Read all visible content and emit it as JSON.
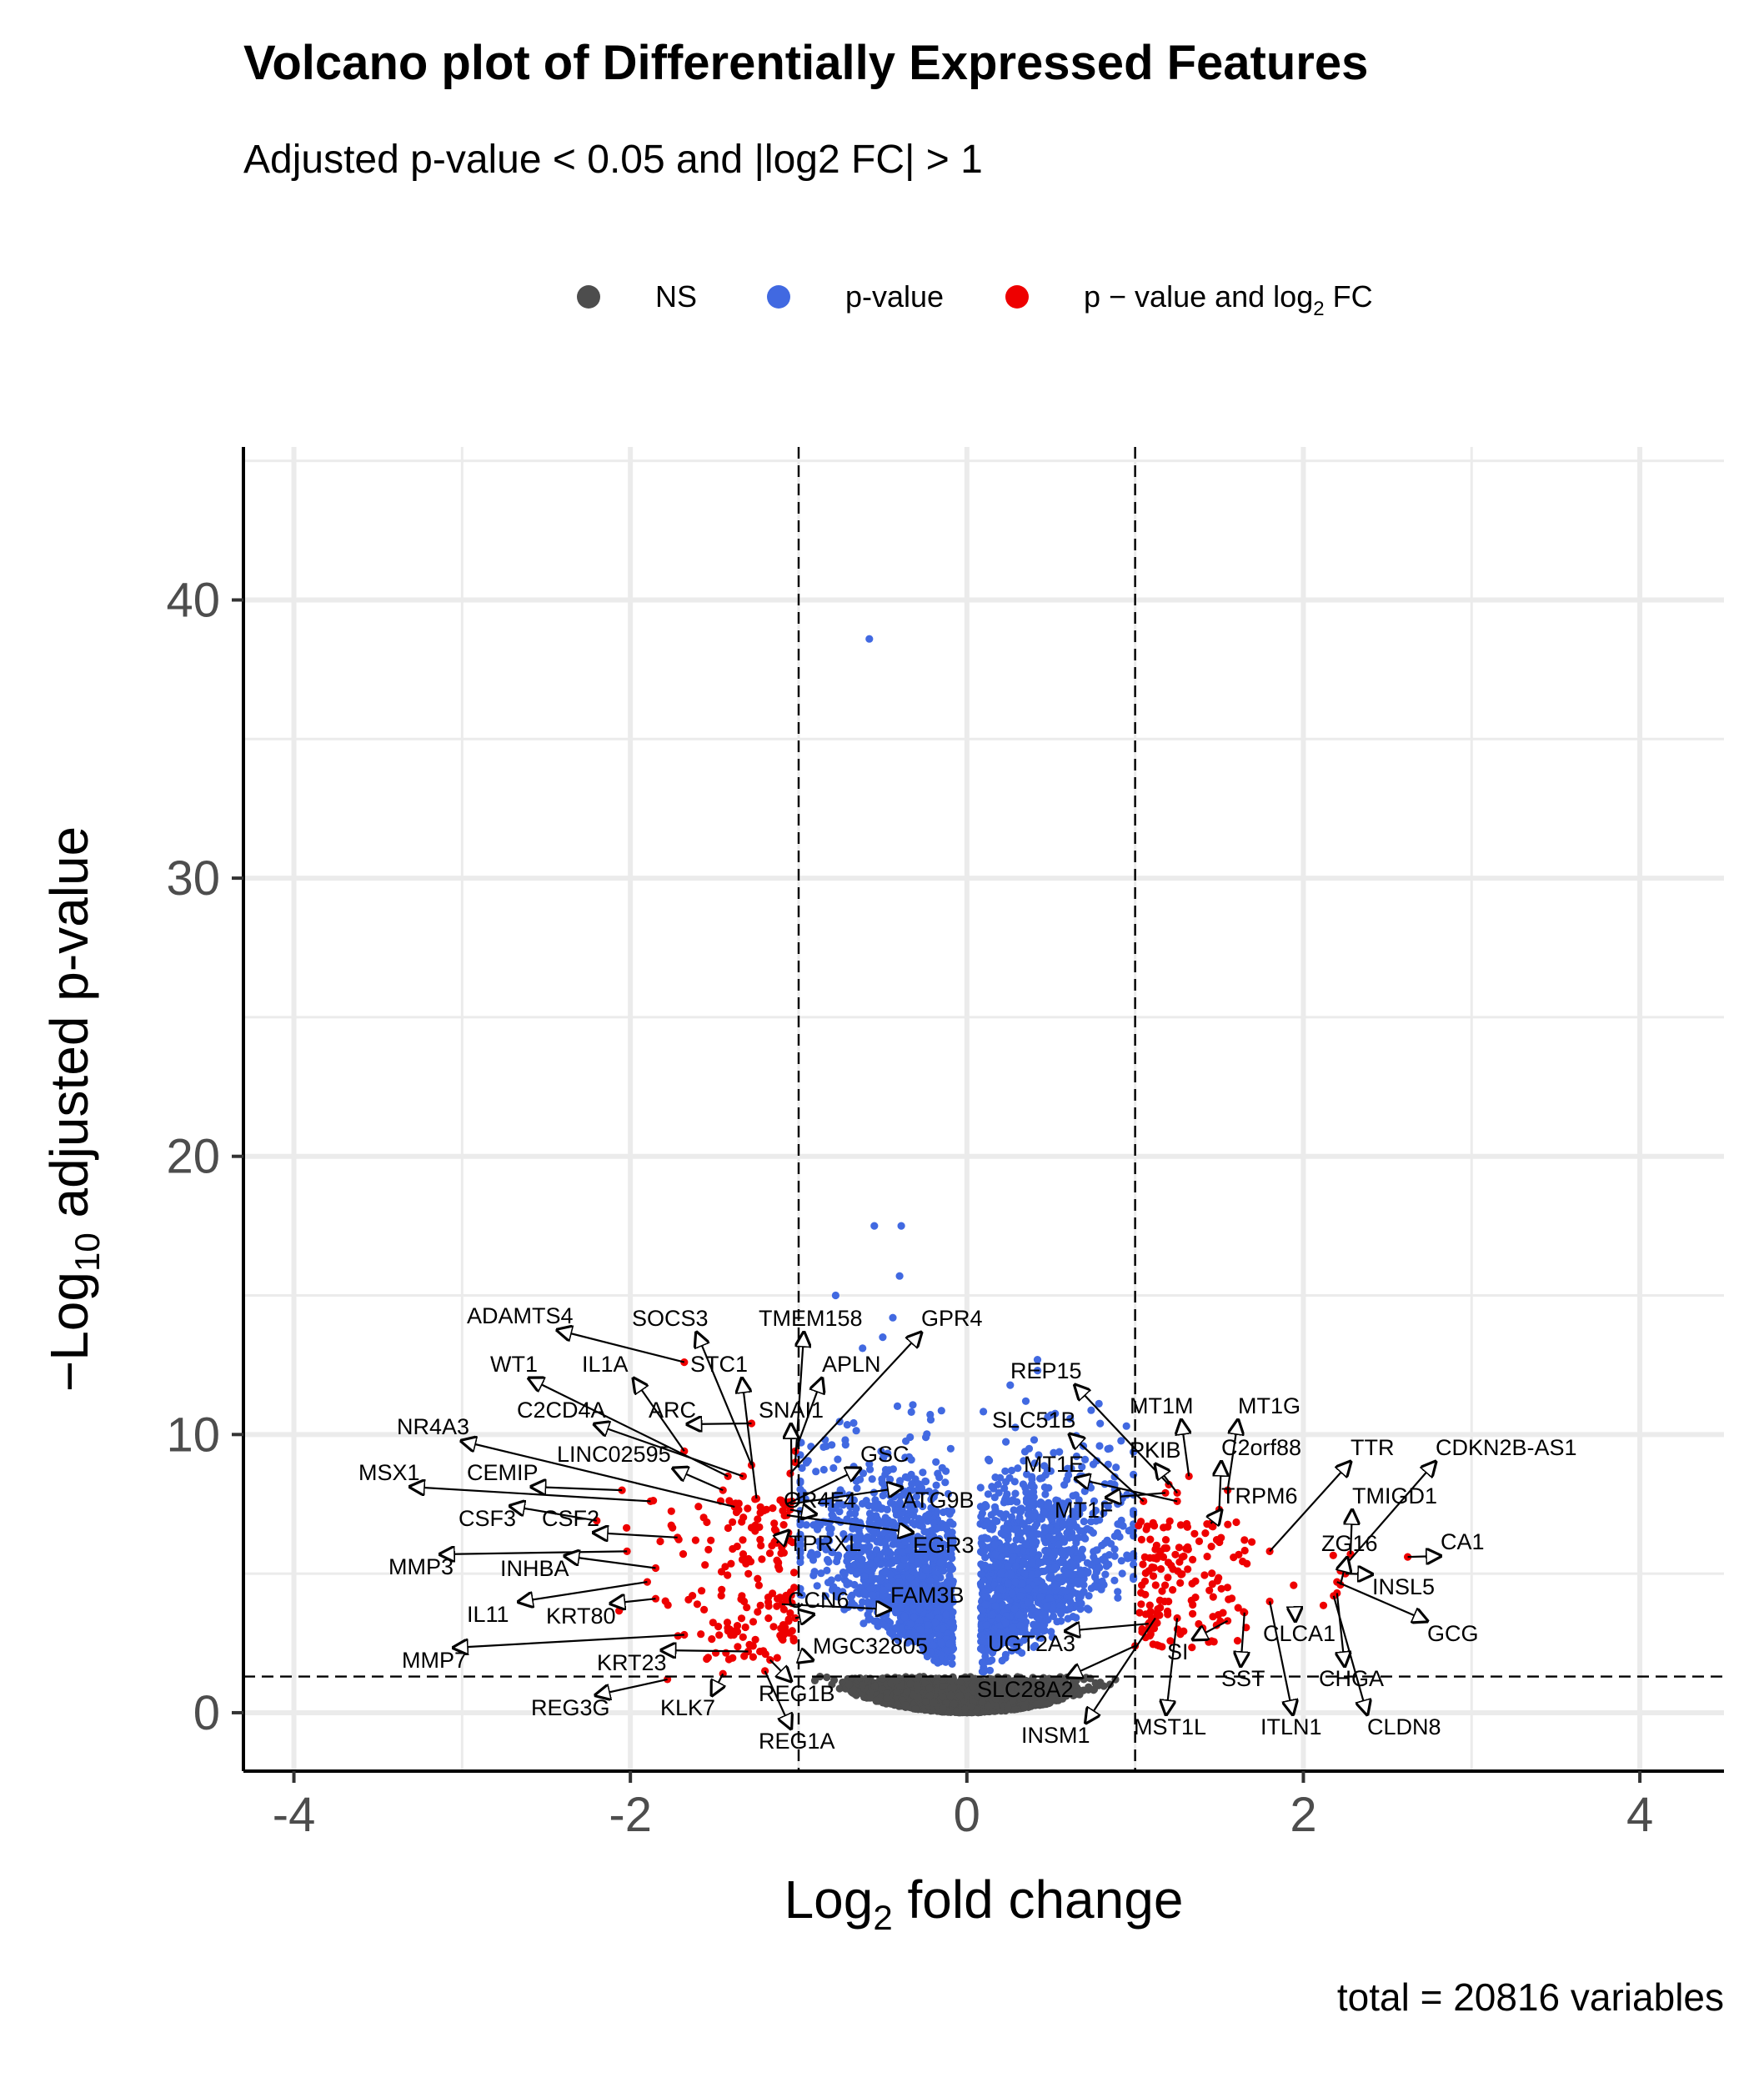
{
  "chart_data": {
    "type": "scatter",
    "title": "Volcano plot of Differentially Expressed Features",
    "subtitle": "Adjusted p-value < 0.05 and |log2 FC| > 1",
    "caption": "total = 20816 variables",
    "xlabel": {
      "main": "Log",
      "sub": "2",
      "rest": " fold change"
    },
    "ylabel": {
      "pre": "−Log",
      "sub": "10",
      "rest": " adjusted p-value"
    },
    "xlim": [
      -4.3,
      4.5
    ],
    "ylim": [
      -2.1,
      45.5
    ],
    "x_ticks": [
      -4,
      -2,
      0,
      2,
      4
    ],
    "y_ticks": [
      0,
      10,
      20,
      30,
      40
    ],
    "grid": true,
    "legend_position": "top",
    "thresholds": {
      "log2fc": [
        -1,
        1
      ],
      "neg_log10_padj": 1.3
    },
    "legend": [
      {
        "key": "NS",
        "label": "NS",
        "color": "#4d4d4d"
      },
      {
        "key": "p",
        "label": "p-value",
        "color": "#4169e1"
      },
      {
        "key": "pfc",
        "label": "p − value and log",
        "sub": "2",
        "rest": " FC",
        "color": "#ee0000"
      }
    ],
    "colors": {
      "ns": "#4d4d4d",
      "p": "#4169e1",
      "pfc": "#ee0000"
    },
    "outlier_point": {
      "x": -0.58,
      "y": 38.6,
      "group": "p"
    },
    "labeled_genes": [
      {
        "name": "ADAMTS4",
        "x": -1.68,
        "y": 12.6
      },
      {
        "name": "SOCS3",
        "x": -1.28,
        "y": 8.9
      },
      {
        "name": "TMEM158",
        "x": -1.02,
        "y": 9.0
      },
      {
        "name": "GPR4",
        "x": -1.05,
        "y": 8.6
      },
      {
        "name": "WT1",
        "x": -1.42,
        "y": 8.5
      },
      {
        "name": "IL1A",
        "x": -1.68,
        "y": 9.4
      },
      {
        "name": "STC1",
        "x": -1.25,
        "y": 7.7
      },
      {
        "name": "APLN",
        "x": -1.02,
        "y": 9.4
      },
      {
        "name": "C2CD4A",
        "x": -1.33,
        "y": 8.5
      },
      {
        "name": "ARC",
        "x": -1.28,
        "y": 10.4
      },
      {
        "name": "SNAI1",
        "x": -1.04,
        "y": 7.6
      },
      {
        "name": "NR4A3",
        "x": -1.38,
        "y": 7.4
      },
      {
        "name": "LINC02595",
        "x": -1.45,
        "y": 8.0
      },
      {
        "name": "GSC",
        "x": -1.07,
        "y": 7.5
      },
      {
        "name": "MSX1",
        "x": -1.88,
        "y": 7.6
      },
      {
        "name": "CEMIP",
        "x": -2.05,
        "y": 8.0
      },
      {
        "name": "OR4F4",
        "x": -1.05,
        "y": 7.3
      },
      {
        "name": "ATG9B",
        "x": -1.05,
        "y": 7.5
      },
      {
        "name": "CSF3",
        "x": -2.2,
        "y": 6.9
      },
      {
        "name": "CSF2",
        "x": -1.72,
        "y": 6.3
      },
      {
        "name": "TPRXL",
        "x": -1.13,
        "y": 6.1
      },
      {
        "name": "EGR3",
        "x": -1.07,
        "y": 7.1
      },
      {
        "name": "MMP3",
        "x": -2.02,
        "y": 5.8
      },
      {
        "name": "INHBA",
        "x": -1.85,
        "y": 5.2
      },
      {
        "name": "FAM3B",
        "x": -1.1,
        "y": 3.9
      },
      {
        "name": "IL11",
        "x": -1.9,
        "y": 4.7
      },
      {
        "name": "KRT80",
        "x": -1.85,
        "y": 4.1
      },
      {
        "name": "CCN6",
        "x": -1.02,
        "y": 3.4
      },
      {
        "name": "MGC32805",
        "x": -0.97,
        "y": 2.0
      },
      {
        "name": "MMP7",
        "x": -1.68,
        "y": 2.8
      },
      {
        "name": "KRT23",
        "x": -1.3,
        "y": 2.2
      },
      {
        "name": "REG3G",
        "x": -1.78,
        "y": 1.2
      },
      {
        "name": "KLK7",
        "x": -1.45,
        "y": 1.4
      },
      {
        "name": "REG1B",
        "x": -1.17,
        "y": 1.9
      },
      {
        "name": "REG1A",
        "x": -1.2,
        "y": 1.5
      },
      {
        "name": "REP15",
        "x": 1.2,
        "y": 8.2
      },
      {
        "name": "MT1M",
        "x": 1.32,
        "y": 8.5
      },
      {
        "name": "MT1G",
        "x": 1.55,
        "y": 8.0
      },
      {
        "name": "SLC51B",
        "x": 1.05,
        "y": 7.6
      },
      {
        "name": "PKIB",
        "x": 1.25,
        "y": 7.9
      },
      {
        "name": "C2orf88",
        "x": 1.5,
        "y": 7.3
      },
      {
        "name": "TTR",
        "x": 1.8,
        "y": 5.8
      },
      {
        "name": "CDKN2B-AS1",
        "x": 2.22,
        "y": 5.1
      },
      {
        "name": "MT1E",
        "x": 1.25,
        "y": 7.6
      },
      {
        "name": "TRPM6",
        "x": 1.45,
        "y": 6.8
      },
      {
        "name": "TMIGD1",
        "x": 2.28,
        "y": 5.7
      },
      {
        "name": "MT1F",
        "x": 1.18,
        "y": 7.9
      },
      {
        "name": "ZG16",
        "x": 2.22,
        "y": 4.6
      },
      {
        "name": "CA1",
        "x": 2.62,
        "y": 5.6
      },
      {
        "name": "INSL5",
        "x": 2.25,
        "y": 5.0
      },
      {
        "name": "GCG",
        "x": 2.2,
        "y": 4.7
      },
      {
        "name": "CLCA1",
        "x": 1.95,
        "y": 3.6
      },
      {
        "name": "SI",
        "x": 1.55,
        "y": 3.3
      },
      {
        "name": "UGT2A3",
        "x": 1.08,
        "y": 3.2
      },
      {
        "name": "CHGA",
        "x": 2.2,
        "y": 4.3
      },
      {
        "name": "SST",
        "x": 1.65,
        "y": 3.6
      },
      {
        "name": "SLC28A2",
        "x": 1.0,
        "y": 2.4
      },
      {
        "name": "ITLN1",
        "x": 1.8,
        "y": 4.0
      },
      {
        "name": "CLDN8",
        "x": 2.18,
        "y": 4.2
      },
      {
        "name": "INSM1",
        "x": 1.12,
        "y": 3.4
      },
      {
        "name": "MST1L",
        "x": 1.25,
        "y": 3.4
      }
    ]
  }
}
